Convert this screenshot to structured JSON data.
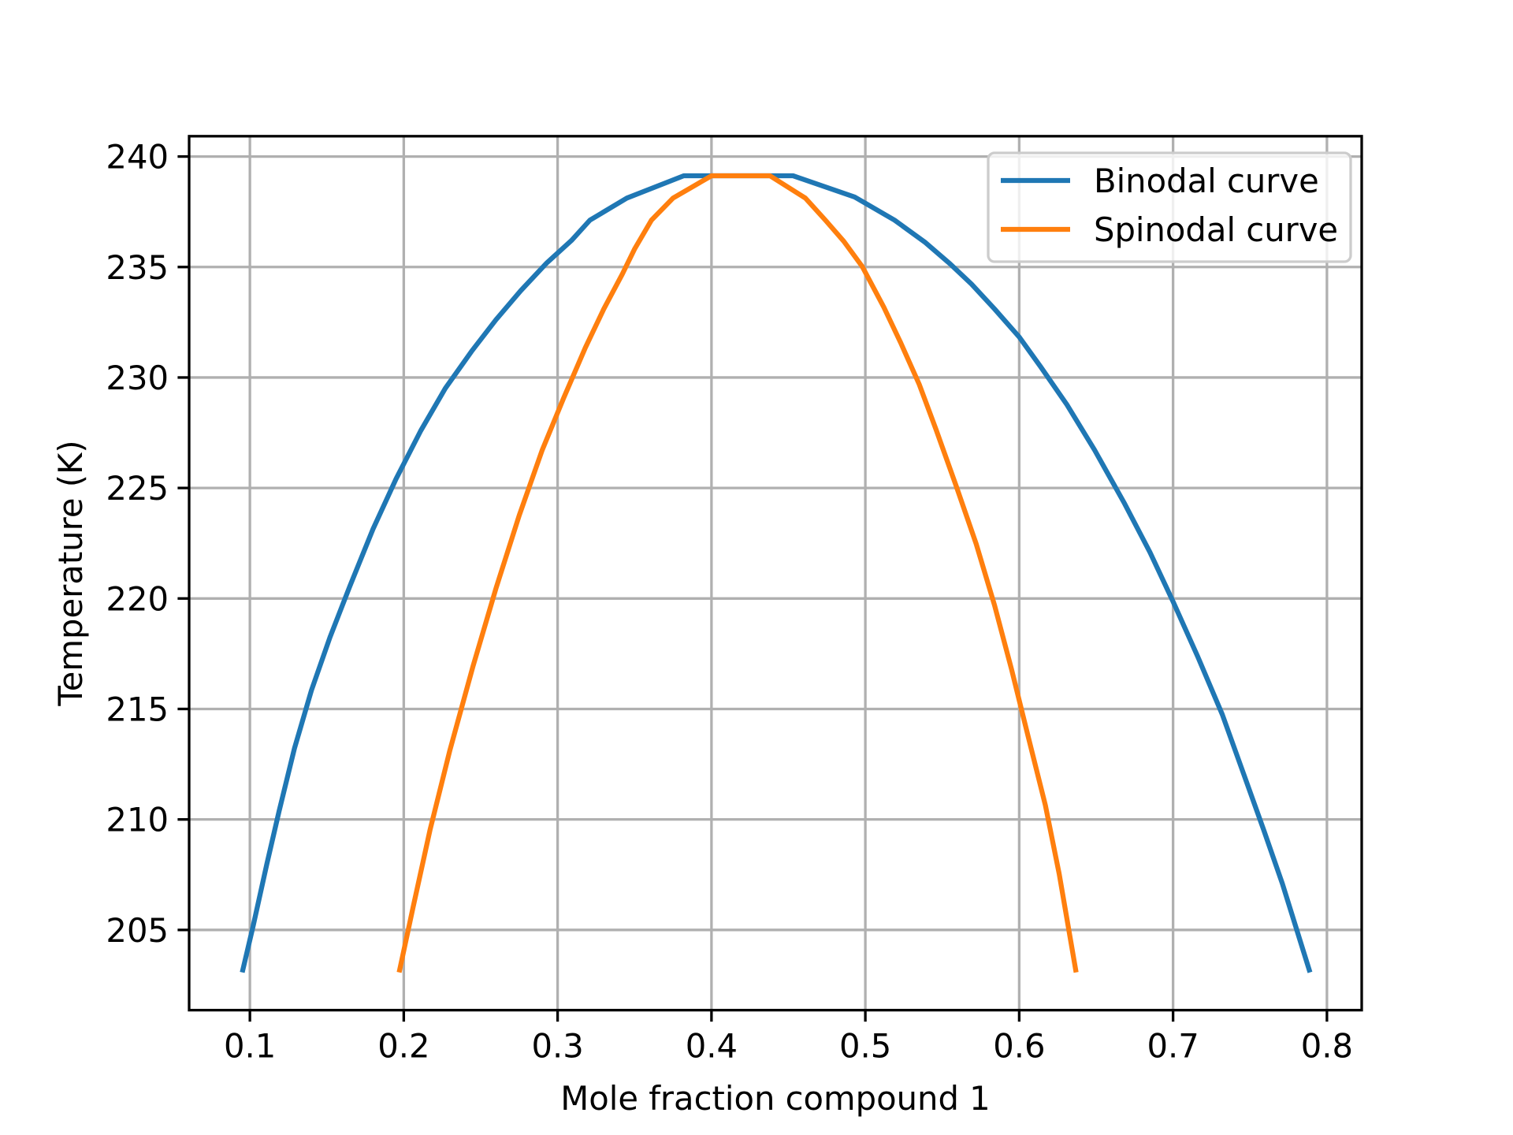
{
  "chart_data": {
    "type": "line",
    "title": "",
    "xlabel": "Mole fraction compound 1",
    "ylabel": "Temperature (K)",
    "xlim": [
      0.0605,
      0.8226
    ],
    "ylim": [
      201.37,
      240.92
    ],
    "xticks": [
      0.1,
      0.2,
      0.3,
      0.4,
      0.5,
      0.6,
      0.7,
      0.8
    ],
    "xtick_labels": [
      "0.1",
      "0.2",
      "0.3",
      "0.4",
      "0.5",
      "0.6",
      "0.7",
      "0.8"
    ],
    "yticks": [
      205,
      210,
      215,
      220,
      225,
      230,
      235,
      240
    ],
    "ytick_labels": [
      "205",
      "210",
      "215",
      "220",
      "225",
      "230",
      "235",
      "240"
    ],
    "grid": true,
    "legend_position": "top-right",
    "series": [
      {
        "name": "Binodal curve",
        "color": "#1f77b4",
        "x": [
          0.095,
          0.102,
          0.111,
          0.119,
          0.129,
          0.14,
          0.152,
          0.165,
          0.18,
          0.195,
          0.211,
          0.227,
          0.244,
          0.26,
          0.276,
          0.293,
          0.309,
          0.321,
          0.345,
          0.382,
          0.453,
          0.493,
          0.519,
          0.539,
          0.555,
          0.569,
          0.584,
          0.6,
          0.614,
          0.631,
          0.649,
          0.668,
          0.685,
          0.7,
          0.716,
          0.732,
          0.746,
          0.759,
          0.771,
          0.789
        ],
        "y": [
          203.08,
          205.14,
          207.98,
          210.38,
          213.22,
          215.84,
          218.24,
          220.56,
          223.14,
          225.41,
          227.59,
          229.51,
          231.18,
          232.62,
          233.93,
          235.19,
          236.2,
          237.12,
          238.12,
          239.13,
          239.13,
          238.17,
          237.12,
          236.11,
          235.15,
          234.23,
          233.1,
          231.83,
          230.48,
          228.77,
          226.72,
          224.36,
          222.09,
          219.86,
          217.37,
          214.75,
          212.04,
          209.51,
          207.1,
          203.08
        ]
      },
      {
        "name": "Spinodal curve",
        "color": "#ff7f0e",
        "x": [
          0.197,
          0.206,
          0.217,
          0.23,
          0.245,
          0.26,
          0.275,
          0.29,
          0.304,
          0.318,
          0.33,
          0.342,
          0.35,
          0.361,
          0.375,
          0.4,
          0.438,
          0.461,
          0.474,
          0.486,
          0.498,
          0.512,
          0.523,
          0.535,
          0.546,
          0.559,
          0.572,
          0.584,
          0.595,
          0.606,
          0.617,
          0.626,
          0.637
        ],
        "y": [
          203.08,
          206.01,
          209.51,
          213.13,
          216.93,
          220.47,
          223.75,
          226.72,
          229.08,
          231.35,
          233.1,
          234.67,
          235.81,
          237.12,
          238.12,
          239.13,
          239.13,
          238.12,
          237.12,
          236.16,
          235.02,
          233.18,
          231.57,
          229.69,
          227.64,
          225.1,
          222.48,
          219.69,
          216.8,
          213.7,
          210.64,
          207.54,
          203.08
        ]
      }
    ]
  }
}
